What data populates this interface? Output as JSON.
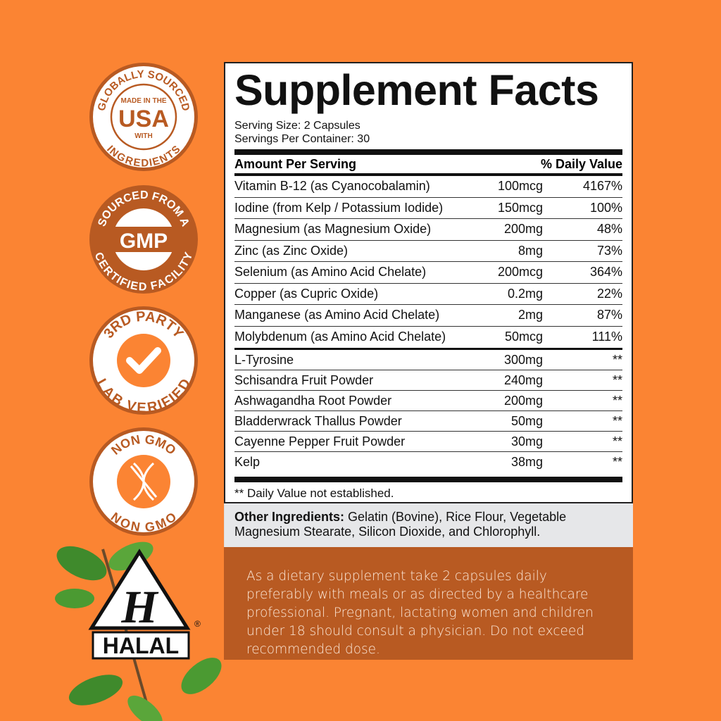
{
  "colors": {
    "background": "#fb8433",
    "brown": "#b85a22",
    "grey": "#e6e7e9"
  },
  "badges": [
    {
      "top": "GLOBALLY SOURCED",
      "center_small": "MADE IN THE",
      "center_big": "USA",
      "center_small2": "WITH",
      "bottom": "INGREDIENTS"
    },
    {
      "top": "SOURCED FROM A",
      "center_big": "GMP",
      "bottom": "CERTIFIED FACILITY"
    },
    {
      "top": "3RD PARTY",
      "icon": "checkmark-icon",
      "bottom": "LAB VERIFIED"
    },
    {
      "top": "NON GMO",
      "icon": "crossed-dna-icon",
      "bottom": "NON GMO"
    }
  ],
  "halal": {
    "letter": "H",
    "label": "HALAL",
    "mark": "®"
  },
  "facts": {
    "title": "Supplement Facts",
    "serving_size": "Serving Size: 2 Capsules",
    "servings_per_container": "Servings Per Container: 30",
    "header_amount": "Amount Per Serving",
    "header_dv": "% Daily Value",
    "vitamins": [
      {
        "name": "Vitamin B-12 (as Cyanocobalamin)",
        "amount": "100mcg",
        "dv": "4167%"
      },
      {
        "name": "Iodine (from Kelp / Potassium Iodide)",
        "amount": "150mcg",
        "dv": "100%"
      },
      {
        "name": "Magnesium (as Magnesium Oxide)",
        "amount": "200mg",
        "dv": "48%"
      },
      {
        "name": "Zinc (as Zinc Oxide)",
        "amount": "8mg",
        "dv": "73%"
      },
      {
        "name": "Selenium (as Amino Acid Chelate)",
        "amount": "200mcg",
        "dv": "364%"
      },
      {
        "name": "Copper (as Cupric Oxide)",
        "amount": "0.2mg",
        "dv": "22%"
      },
      {
        "name": "Manganese (as Amino Acid Chelate)",
        "amount": "2mg",
        "dv": "87%"
      },
      {
        "name": "Molybdenum (as Amino Acid Chelate)",
        "amount": "50mcg",
        "dv": "111%"
      }
    ],
    "other": [
      {
        "name": "L-Tyrosine",
        "amount": "300mg",
        "dv": "**"
      },
      {
        "name": "Schisandra Fruit Powder",
        "amount": "240mg",
        "dv": "**"
      },
      {
        "name": "Ashwagandha Root Powder",
        "amount": "200mg",
        "dv": "**"
      },
      {
        "name": "Bladderwrack Thallus Powder",
        "amount": "50mg",
        "dv": "**"
      },
      {
        "name": "Cayenne Pepper Fruit Powder",
        "amount": "30mg",
        "dv": "**"
      },
      {
        "name": "Kelp",
        "amount": "38mg",
        "dv": "**"
      }
    ],
    "footnote": "** Daily Value not established."
  },
  "other_ingredients": {
    "label": "Other Ingredients:",
    "text": " Gelatin (Bovine), Rice Flour, Vegetable Magnesium Stearate, Silicon Dioxide, and Chlorophyll."
  },
  "directions": "As a dietary supplement take 2 capsules daily preferably with meals or as directed by a healthcare professional. Pregnant, lactating women and children under 18 should consult a physician. Do not exceed recommended dose."
}
